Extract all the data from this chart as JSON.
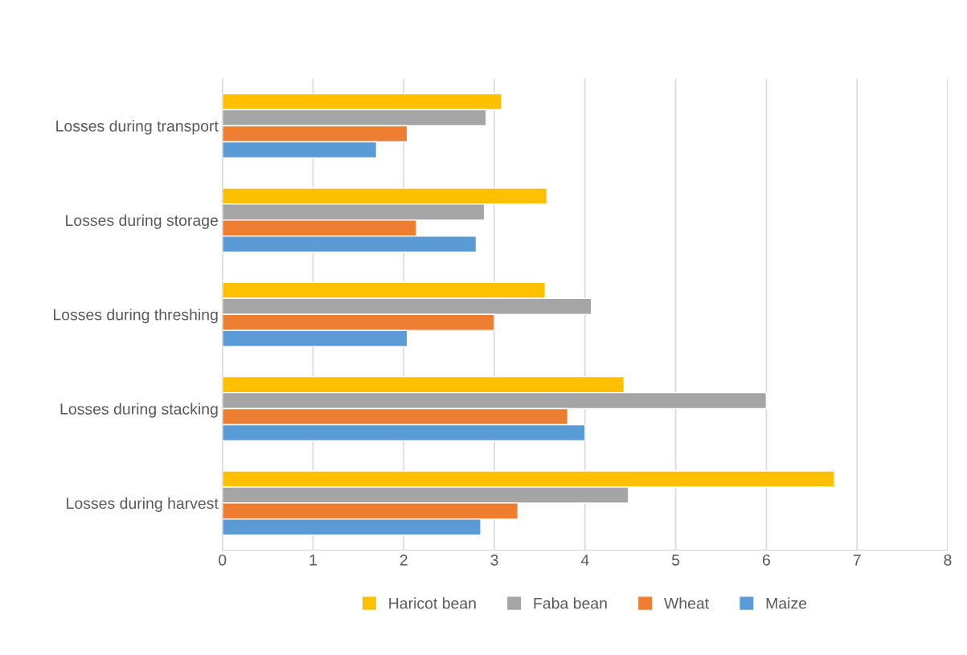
{
  "chart_data": {
    "type": "bar",
    "orientation": "horizontal",
    "categories": [
      "Losses during transport",
      "Losses during storage",
      "Losses during threshing",
      "Losses during stacking",
      "Losses during harvest"
    ],
    "series": [
      {
        "name": "Haricot bean",
        "color": "#ffc000",
        "values": [
          3.08,
          3.58,
          3.56,
          4.43,
          6.75
        ]
      },
      {
        "name": "Faba bean",
        "color": "#a5a5a5",
        "values": [
          2.91,
          2.89,
          4.07,
          6.0,
          4.48
        ]
      },
      {
        "name": "Wheat",
        "color": "#ed7d31",
        "values": [
          2.04,
          2.14,
          3.0,
          3.81,
          3.26
        ]
      },
      {
        "name": "Maize",
        "color": "#5b9bd5",
        "values": [
          1.7,
          2.8,
          2.04,
          4.0,
          2.85
        ]
      }
    ],
    "xlim": [
      0,
      8
    ],
    "xticks": [
      0,
      1,
      2,
      3,
      4,
      5,
      6,
      7,
      8
    ],
    "grid": "x",
    "legend": "bottom"
  }
}
